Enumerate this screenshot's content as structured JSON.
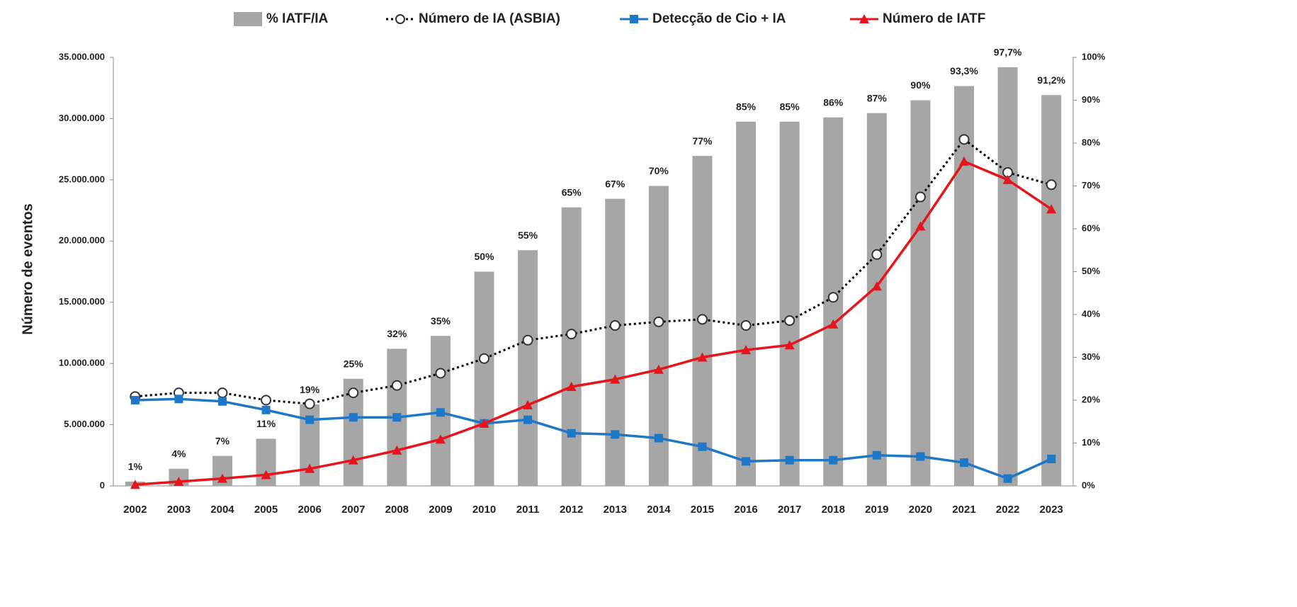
{
  "chart_data": {
    "type": "combo",
    "y_label": "Número de eventos",
    "categories": [
      "2002",
      "2003",
      "2004",
      "2005",
      "2006",
      "2007",
      "2008",
      "2009",
      "2010",
      "2011",
      "2012",
      "2013",
      "2014",
      "2015",
      "2016",
      "2017",
      "2018",
      "2019",
      "2020",
      "2021",
      "2022",
      "2023"
    ],
    "ylim": [
      0,
      35000000
    ],
    "yticks": [
      0,
      {
        "value": 5000000,
        "label": "5.000.000"
      },
      {
        "value": 10000000,
        "label": "10.000.000"
      },
      {
        "value": 15000000,
        "label": "15.000.000"
      },
      {
        "value": 20000000,
        "label": "20.000.000"
      },
      {
        "value": 25000000,
        "label": "25.000.000"
      },
      {
        "value": 30000000,
        "label": "30.000.000"
      },
      {
        "value": 35000000,
        "label": "35.000.000"
      }
    ],
    "y2lim": [
      0,
      100
    ],
    "y2ticks": [
      {
        "value": 0,
        "label": "0%"
      },
      {
        "value": 10,
        "label": "10%"
      },
      {
        "value": 20,
        "label": "20%"
      },
      {
        "value": 30,
        "label": "30%"
      },
      {
        "value": 40,
        "label": "40%"
      },
      {
        "value": 50,
        "label": "50%"
      },
      {
        "value": 60,
        "label": "60%"
      },
      {
        "value": 70,
        "label": "70%"
      },
      {
        "value": 80,
        "label": "80%"
      },
      {
        "value": 90,
        "label": "90%"
      },
      {
        "value": 100,
        "label": "100%"
      }
    ],
    "series": [
      {
        "name": "% IATF/IA",
        "type": "bar",
        "axis": "y2",
        "color": "#a6a6a6",
        "values": [
          1,
          4,
          7,
          11,
          19,
          25,
          32,
          35,
          50,
          55,
          65,
          67,
          70,
          77,
          85,
          85,
          86,
          87,
          90,
          93.3,
          97.7,
          91.2
        ],
        "value_labels": [
          "1%",
          "4%",
          "7%",
          "11%",
          "19%",
          "25%",
          "32%",
          "35%",
          "50%",
          "55%",
          "65%",
          "67%",
          "70%",
          "77%",
          "85%",
          "85%",
          "86%",
          "87%",
          "90%",
          "93,3%",
          "97,7%",
          "91,2%"
        ]
      },
      {
        "name": "Número de IA (ASBIA)",
        "type": "line",
        "color": "#000000",
        "dash": "dotted",
        "marker": "circle",
        "values": [
          7300000,
          7600000,
          7600000,
          7000000,
          6700000,
          7600000,
          8200000,
          9200000,
          10400000,
          11900000,
          12400000,
          13100000,
          13400000,
          13600000,
          13100000,
          13500000,
          15400000,
          18900000,
          23600000,
          28300000,
          25600000,
          24600000
        ]
      },
      {
        "name": "Detecção de Cio + IA",
        "type": "line",
        "color": "#1f77c8",
        "marker": "square",
        "values": [
          7000000,
          7100000,
          6900000,
          6200000,
          5400000,
          5600000,
          5600000,
          6000000,
          5100000,
          5400000,
          4300000,
          4200000,
          3900000,
          3200000,
          2000000,
          2100000,
          2100000,
          2500000,
          2400000,
          1900000,
          600000,
          2200000
        ]
      },
      {
        "name": "Número de IATF",
        "type": "line",
        "color": "#e8141c",
        "marker": "triangle",
        "values": [
          100000,
          350000,
          600000,
          900000,
          1400000,
          2100000,
          2900000,
          3800000,
          5100000,
          6600000,
          8100000,
          8700000,
          9500000,
          10500000,
          11100000,
          11500000,
          13200000,
          16300000,
          21200000,
          26500000,
          25000000,
          22600000
        ]
      }
    ]
  }
}
